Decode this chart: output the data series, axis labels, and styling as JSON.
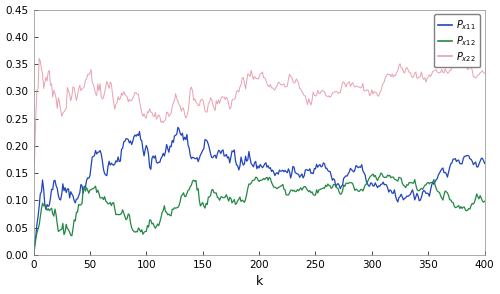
{
  "title": "",
  "xlabel": "k",
  "ylabel": "",
  "xlim": [
    0,
    400
  ],
  "ylim": [
    0,
    0.45
  ],
  "yticks": [
    0,
    0.05,
    0.1,
    0.15,
    0.2,
    0.25,
    0.3,
    0.35,
    0.4,
    0.45
  ],
  "xticks": [
    0,
    50,
    100,
    150,
    200,
    250,
    300,
    350,
    400
  ],
  "legend_labels": [
    "P_{x11}",
    "P_{x12}",
    "P_{x22}"
  ],
  "line_colors": [
    "#e8a0b0",
    "#2244bb",
    "#228844"
  ],
  "background_color": "#ffffff",
  "seed": 42,
  "N": 401
}
